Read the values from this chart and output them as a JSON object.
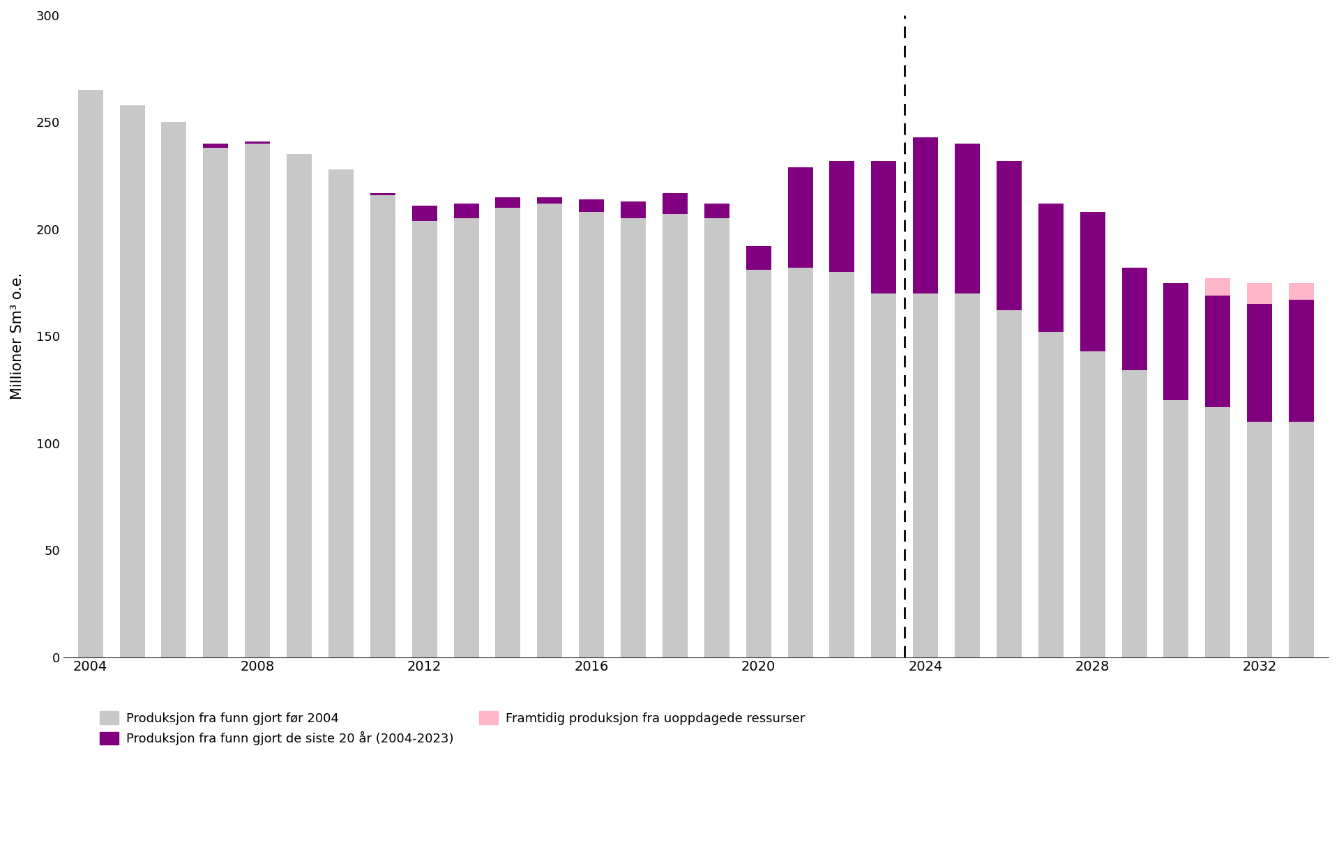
{
  "years": [
    2004,
    2005,
    2006,
    2007,
    2008,
    2009,
    2010,
    2011,
    2012,
    2013,
    2014,
    2015,
    2016,
    2017,
    2018,
    2019,
    2020,
    2021,
    2022,
    2023,
    2024,
    2025,
    2026,
    2027,
    2028,
    2029,
    2030,
    2031,
    2032,
    2033
  ],
  "gray": [
    265,
    258,
    250,
    238,
    240,
    235,
    228,
    216,
    204,
    205,
    210,
    212,
    208,
    205,
    207,
    205,
    181,
    182,
    180,
    170,
    170,
    170,
    162,
    152,
    143,
    134,
    120,
    117,
    110,
    110
  ],
  "purple": [
    0,
    0,
    0,
    2,
    1,
    0,
    0,
    1,
    7,
    7,
    5,
    3,
    6,
    8,
    10,
    7,
    11,
    47,
    52,
    62,
    73,
    70,
    70,
    60,
    65,
    48,
    55,
    52,
    55,
    57
  ],
  "pink": [
    0,
    0,
    0,
    0,
    0,
    0,
    0,
    0,
    0,
    0,
    0,
    0,
    0,
    0,
    0,
    0,
    0,
    0,
    0,
    0,
    0,
    0,
    0,
    0,
    0,
    0,
    0,
    8,
    10,
    8
  ],
  "dashed_line_year": 2024,
  "colors": {
    "gray": "#c8c8c8",
    "purple": "#800080",
    "pink": "#ffb6c8"
  },
  "ylabel": "Millioner Sm³ o.e.",
  "ylim": [
    0,
    300
  ],
  "yticks": [
    0,
    50,
    100,
    150,
    200,
    250,
    300
  ],
  "legend_labels": [
    "Produksjon fra funn gjort før 2004",
    "Produksjon fra funn gjort de siste 20 år (2004-2023)",
    "Framtidig produksjon fra uoppdagede ressurser"
  ],
  "background_color": "#ffffff"
}
